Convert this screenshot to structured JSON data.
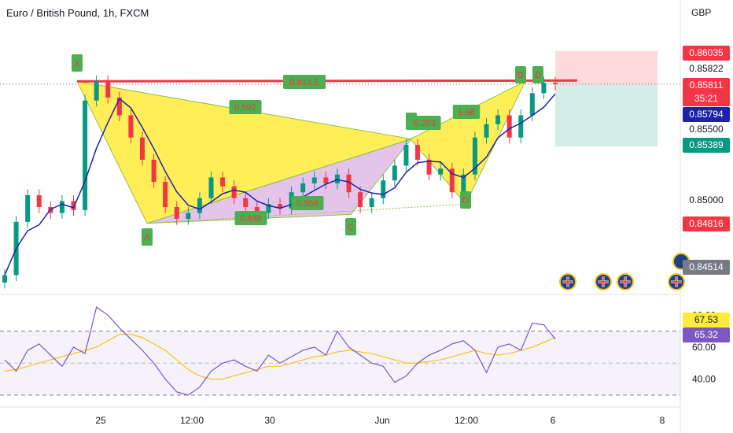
{
  "header": {
    "title": "Euro / British Pound, 1h, FXCM",
    "currency": "GBP"
  },
  "price_labels": [
    {
      "text": "0.86035",
      "bg": "#f23645",
      "color": "#ffffff"
    },
    {
      "text": "0.85822",
      "bg": "#ffffff",
      "color": "#131722"
    },
    {
      "text": "0.85811",
      "bg": "#f23645",
      "color": "#ffffff"
    },
    {
      "text": "35:21",
      "bg": "#f23645",
      "color": "#ffffff"
    },
    {
      "text": "0.85794",
      "bg": "#1e22aa",
      "color": "#ffffff"
    },
    {
      "text": "0.85500",
      "bg": "#ffffff",
      "color": "#131722"
    },
    {
      "text": "0.85389",
      "bg": "#089981",
      "color": "#ffffff"
    },
    {
      "text": "0.85000",
      "bg": "#ffffff",
      "color": "#131722"
    },
    {
      "text": "0.84816",
      "bg": "#f23645",
      "color": "#ffffff"
    },
    {
      "text": "0.84514",
      "bg": "#787b86",
      "color": "#ffffff"
    }
  ],
  "x_ticks": [
    "25",
    "12:00",
    "30",
    "Jun",
    "12:00",
    "6",
    "8"
  ],
  "rsi": {
    "ticks": [
      "80.00",
      "60.00",
      "40.00"
    ],
    "labels": [
      {
        "text": "67.53",
        "bg": "#ffeb3b",
        "color": "#131722"
      },
      {
        "text": "65.32",
        "bg": "#7e57c2",
        "color": "#ffffff"
      }
    ]
  },
  "pattern": {
    "points": [
      "X",
      "A",
      "B",
      "C",
      "D",
      "D",
      "D"
    ],
    "ratios": [
      "0.914.5",
      "0.592",
      "0.838",
      "0.556",
      "0.263",
      "1.98"
    ]
  },
  "chart_data": {
    "type": "candlestick",
    "title": "Euro / British Pound, 1h, FXCM",
    "y_unit": "GBP",
    "ylim": [
      0.844,
      0.8622
    ],
    "y_ticks": [
      0.85,
      0.855
    ],
    "x_ticks": [
      "25",
      "12:00",
      "30",
      "Jun",
      "12:00",
      "6",
      "8"
    ],
    "close_series": [
      0.8452,
      0.8488,
      0.8506,
      0.8498,
      0.8494,
      0.8502,
      0.8496,
      0.857,
      0.8583,
      0.8572,
      0.856,
      0.8545,
      0.853,
      0.8515,
      0.8498,
      0.849,
      0.8494,
      0.8504,
      0.8518,
      0.8512,
      0.8504,
      0.8498,
      0.8494,
      0.85,
      0.8497,
      0.8508,
      0.8514,
      0.8518,
      0.8514,
      0.852,
      0.8508,
      0.8498,
      0.8504,
      0.8516,
      0.8526,
      0.854,
      0.853,
      0.852,
      0.8524,
      0.8508,
      0.852,
      0.8545,
      0.8554,
      0.856,
      0.8545,
      0.856,
      0.8575,
      0.8582,
      0.8581
    ],
    "last_price": 0.85811,
    "current_price": 0.85822,
    "moving_average_last": 0.85794,
    "harmonic_pattern": {
      "points": {
        "X": 0.8583,
        "A": 0.8487,
        "B": 0.8544,
        "C": 0.8493,
        "D": 0.8583
      },
      "ratios": [
        "0.914.5",
        "0.592",
        "0.838",
        "0.556",
        "0.263",
        "1.98"
      ]
    },
    "position": {
      "stop_loss": 0.86035,
      "take_profit": 0.85389,
      "entry": 0.85811
    },
    "levels": [
      0.84816,
      0.84514
    ],
    "rsi": {
      "ylim": [
        25,
        90
      ],
      "ticks": [
        80,
        60,
        40
      ],
      "bands": [
        70,
        30
      ],
      "value": 65.32,
      "ma_value": 67.53,
      "series": [
        52,
        45,
        58,
        62,
        55,
        48,
        60,
        56,
        85,
        80,
        72,
        65,
        58,
        50,
        40,
        32,
        30,
        35,
        45,
        50,
        52,
        48,
        45,
        55,
        50,
        54,
        58,
        60,
        55,
        70,
        60,
        55,
        50,
        48,
        38,
        42,
        50,
        55,
        58,
        62,
        64,
        58,
        44,
        60,
        62,
        58,
        75,
        74,
        65
      ],
      "ma_series": [
        45,
        46,
        48,
        50,
        52,
        54,
        56,
        58,
        60,
        64,
        68,
        68,
        66,
        62,
        58,
        52,
        46,
        42,
        40,
        40,
        42,
        44,
        46,
        48,
        48,
        50,
        52,
        54,
        55,
        57,
        58,
        57,
        56,
        54,
        52,
        50,
        50,
        51,
        52,
        54,
        56,
        58,
        56,
        55,
        56,
        58,
        60,
        63,
        66
      ]
    }
  }
}
